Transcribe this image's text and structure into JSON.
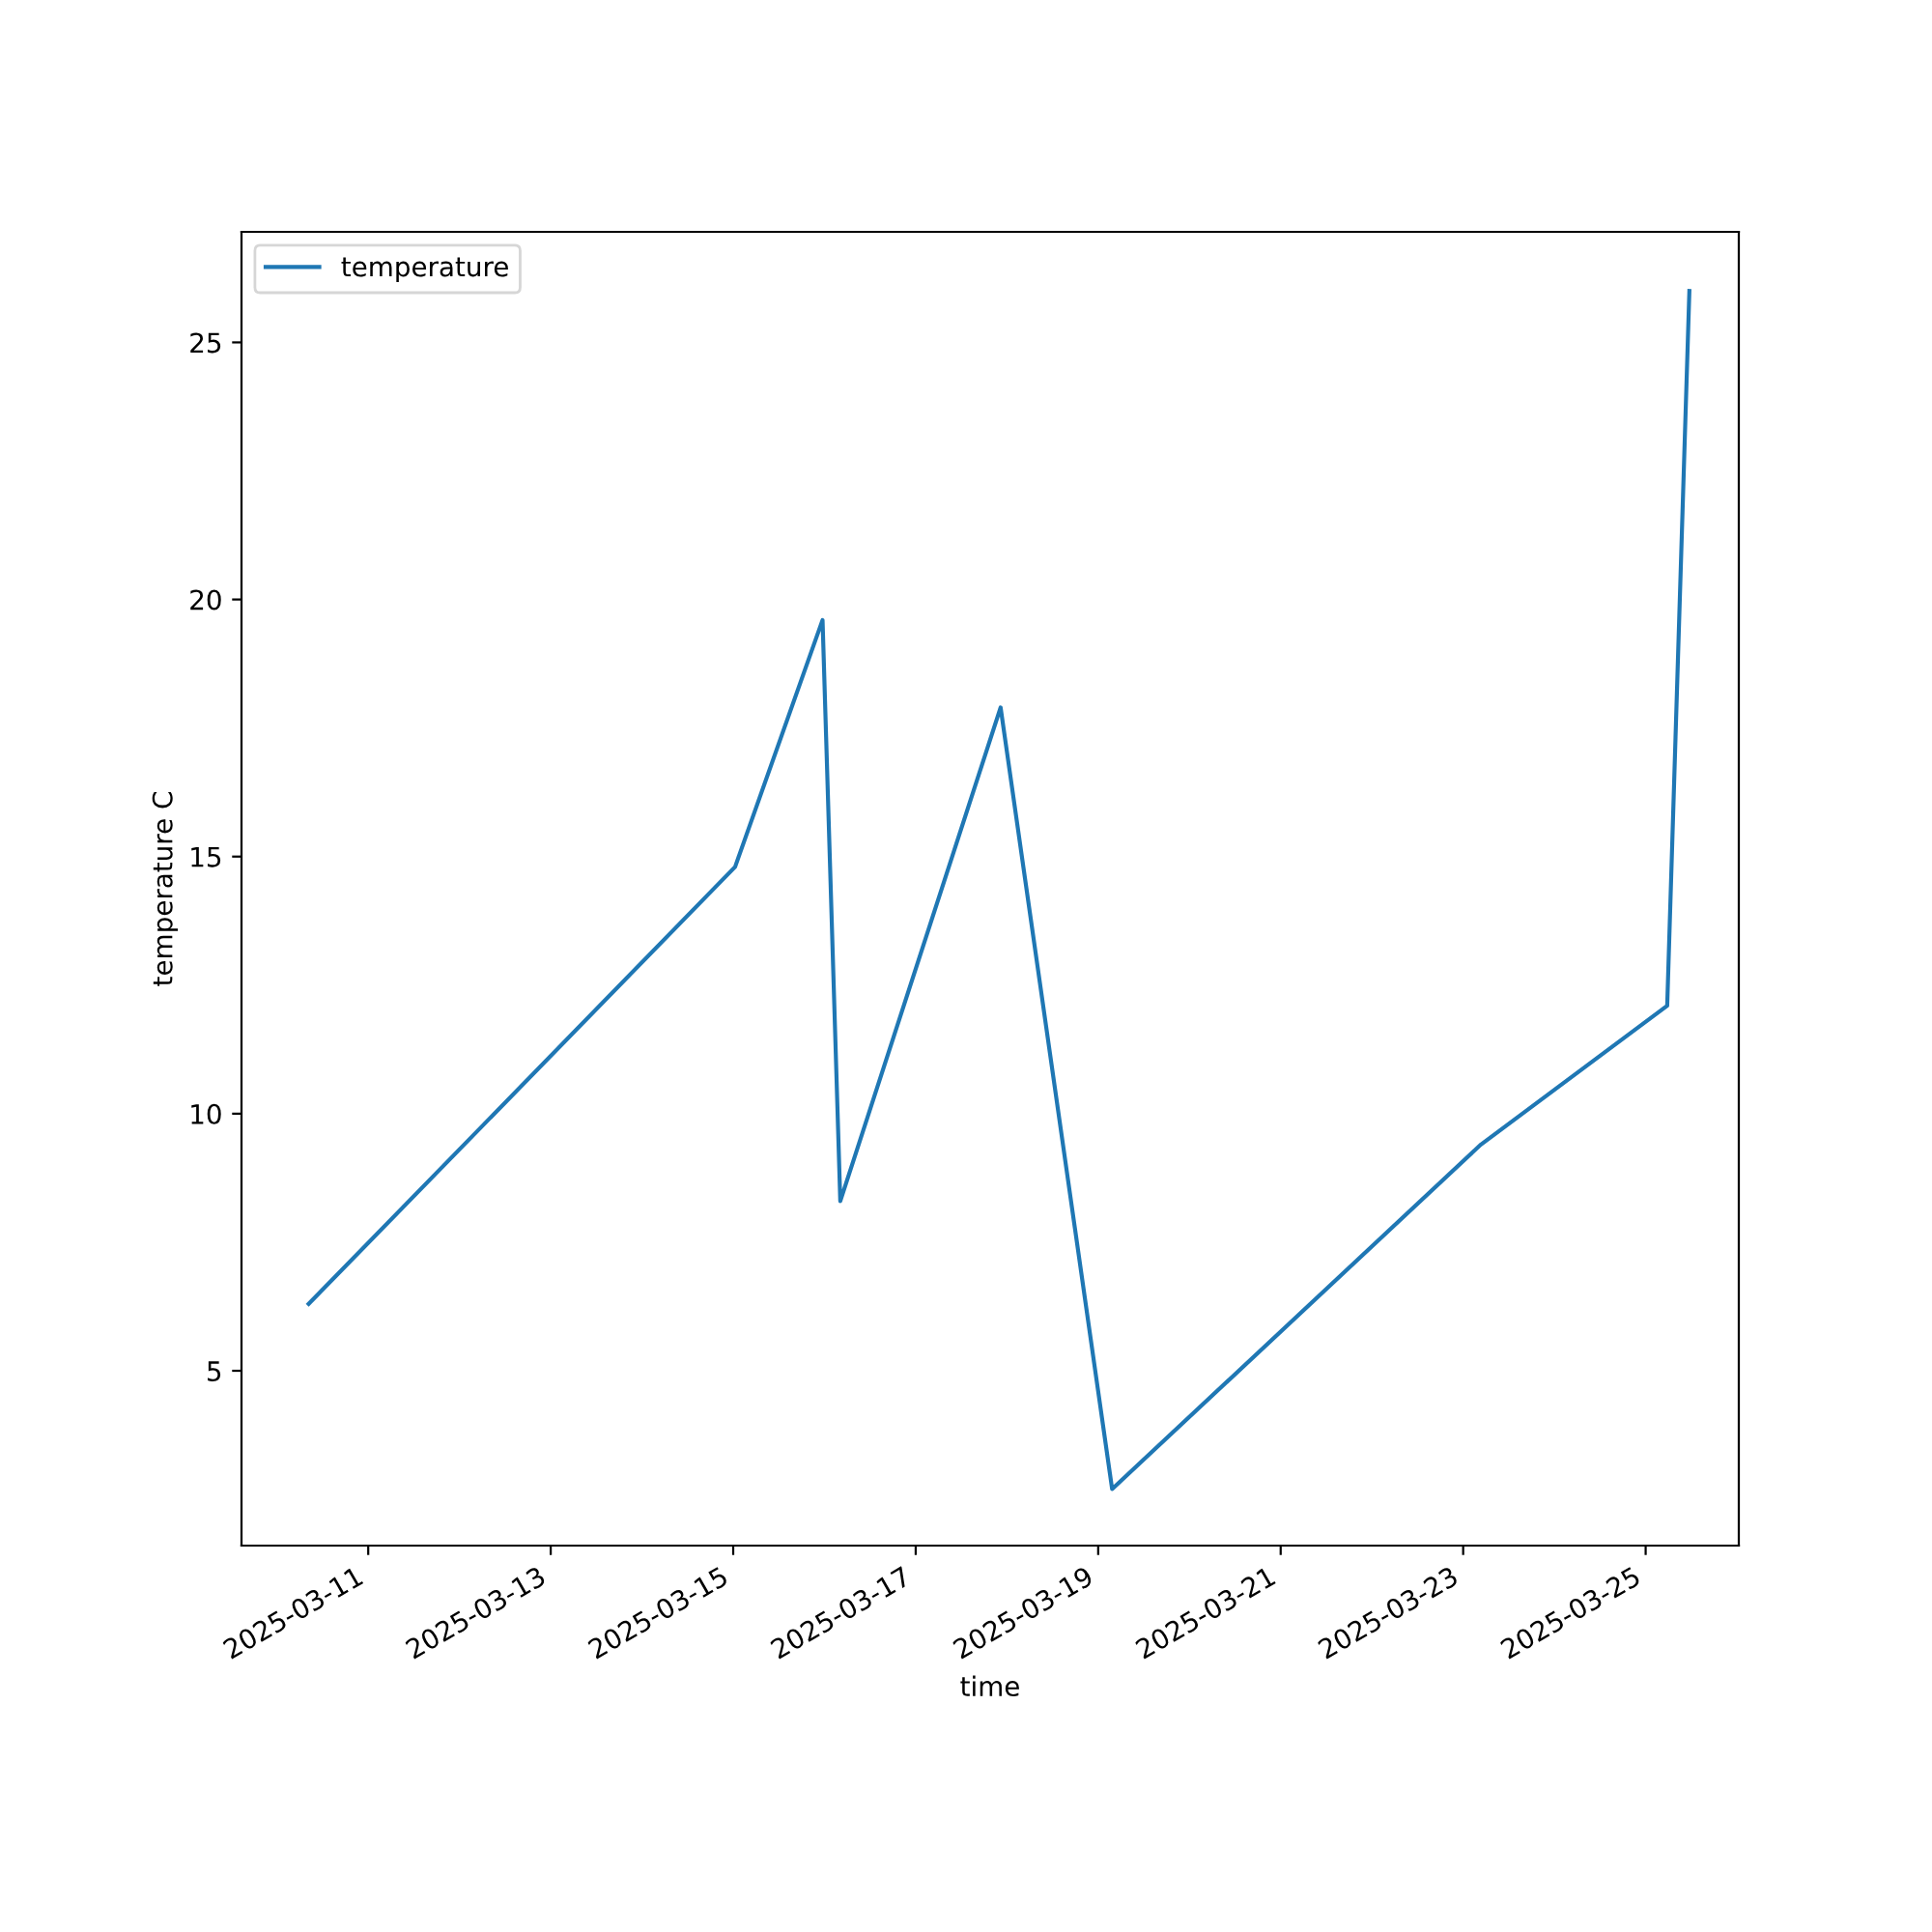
{
  "chart_data": {
    "type": "line",
    "xlabel": "time",
    "ylabel": "temperature C",
    "x": [
      "2025-03-10T08:20",
      "2025-03-15T00:30",
      "2025-03-15T23:30",
      "2025-03-16T04:10",
      "2025-03-17T22:20",
      "2025-03-19T03:40",
      "2025-03-23T04:40",
      "2025-03-25T05:40",
      "2025-03-25T11:30"
    ],
    "series": [
      {
        "name": "temperature",
        "color": "#1f77b4",
        "values": [
          6.3,
          14.8,
          19.6,
          8.3,
          17.9,
          2.7,
          9.4,
          12.1,
          26.0
        ]
      }
    ],
    "xlim": [
      "2025-03-09T14:40",
      "2025-03-26T00:30"
    ],
    "xticks": [
      "2025-03-11",
      "2025-03-13",
      "2025-03-15",
      "2025-03-17",
      "2025-03-19",
      "2025-03-21",
      "2025-03-23",
      "2025-03-25"
    ],
    "ylim": [
      1.6,
      27.15
    ],
    "yticks": [
      5,
      10,
      15,
      20,
      25
    ],
    "legend": "top left",
    "grid": false
  }
}
